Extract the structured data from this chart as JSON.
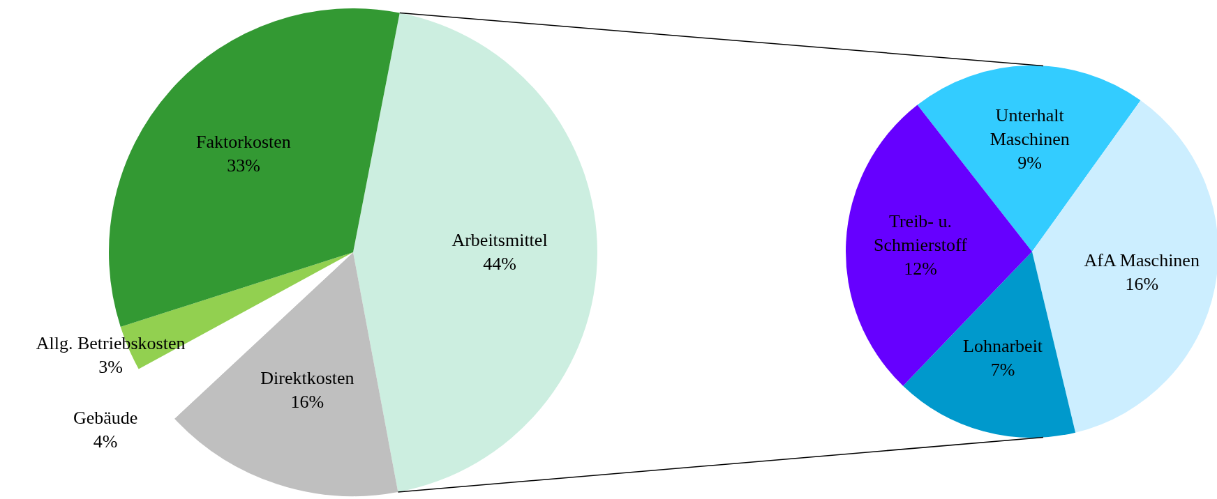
{
  "chart_data": [
    {
      "type": "pie",
      "categories": [
        "Arbeitsmittel",
        "Direktkosten",
        "Gebäude",
        "Allg. Betriebskosten",
        "Faktorkosten"
      ],
      "values": [
        44,
        16,
        4,
        3,
        33
      ],
      "colors": [
        "#cceee0",
        "#bfbfbf",
        "#ffffff",
        "#92d050",
        "#339933"
      ],
      "value_labels": [
        "44%",
        "16%",
        "4%",
        "3%",
        "33%"
      ]
    },
    {
      "type": "pie",
      "categories": [
        "Unterhalt Maschinen",
        "AfA Maschinen",
        "Lohnarbeit",
        "Treib- u. Schmierstoff"
      ],
      "values": [
        9,
        16,
        7,
        12
      ],
      "colors": [
        "#33ccff",
        "#cceeff",
        "#0099cc",
        "#6600ff"
      ],
      "value_labels": [
        "9%",
        "16%",
        "7%",
        "12%"
      ]
    }
  ]
}
